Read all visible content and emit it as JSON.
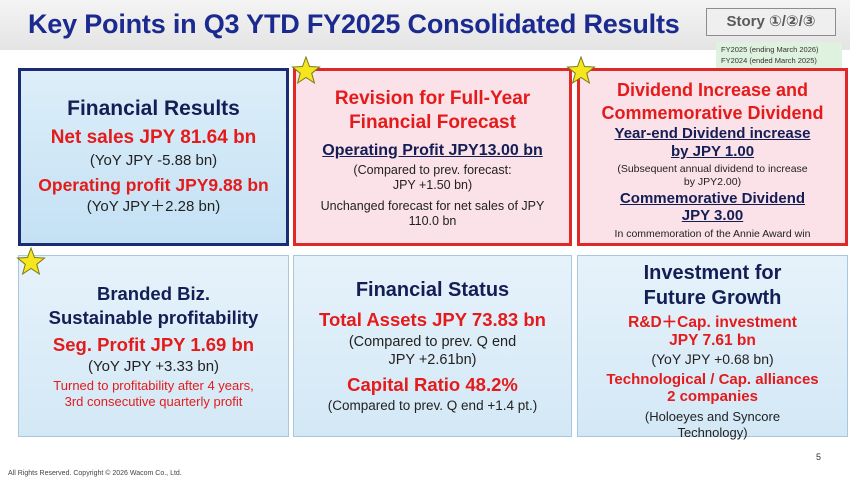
{
  "header": {
    "title": "Key Points in Q3 YTD FY2025 Consolidated Results",
    "story_badge": "Story ①/②/③",
    "fy_notes": [
      "FY2025 (ending March 2026)",
      "FY2024 (ended March 2025)"
    ]
  },
  "financial_results": {
    "heading": "Financial Results",
    "net_sales": "Net sales JPY 81.64 bn",
    "net_sales_yoy": "(YoY JPY -5.88 bn)",
    "op_profit": "Operating profit JPY9.88 bn",
    "op_profit_yoy": "(YoY JPY＋2.28 bn)"
  },
  "revision": {
    "heading_1": "Revision for Full-Year",
    "heading_2": "Financial Forecast",
    "op_profit": "Operating Profit JPY13.00 bn",
    "compare_1": "(Compared to prev. forecast:",
    "compare_2": "JPY +1.50 bn)",
    "unchanged_1": "Unchanged forecast for net sales of JPY",
    "unchanged_2": "110.0 bn"
  },
  "dividend": {
    "heading_1": "Dividend Increase and",
    "heading_2": "Commemorative Dividend",
    "yearend_1": "Year-end Dividend increase",
    "yearend_2": "by JPY 1.00",
    "sub_1": "(Subsequent annual dividend to increase",
    "sub_2": "by JPY2.00)",
    "commem_1": "Commemorative Dividend",
    "commem_2": "JPY 3.00",
    "annie": "In commemoration of the Annie Award win"
  },
  "branded": {
    "heading_1": "Branded Biz.",
    "heading_2": "Sustainable profitability",
    "seg_profit": "Seg. Profit JPY 1.69 bn",
    "seg_yoy": "(YoY JPY +3.33 bn)",
    "note_1": "Turned to profitability after 4 years,",
    "note_2": "3rd consecutive quarterly profit"
  },
  "status": {
    "heading": "Financial Status",
    "total_assets": "Total Assets JPY 73.83 bn",
    "ta_compare_1": "(Compared to prev. Q end",
    "ta_compare_2": "JPY +2.61bn)",
    "capital_ratio": "Capital Ratio 48.2%",
    "cr_compare": "(Compared to prev. Q end +1.4 pt.)"
  },
  "invest": {
    "heading_1": "Investment for",
    "heading_2": "Future Growth",
    "rd_1": "R&D＋Cap. investment",
    "rd_2": "JPY 7.61 bn",
    "rd_yoy": "(YoY JPY +0.68 bn)",
    "alliances_1": "Technological / Cap. alliances",
    "alliances_2": "2 companies",
    "partners_1": "(Holoeyes and Syncore",
    "partners_2": "Technology)"
  },
  "footer": {
    "copyright": "All Rights Reserved. Copyright © 2026 Wacom Co., Ltd.",
    "page": "5"
  },
  "colors": {
    "title_navy": "#1b2a8f",
    "accent_red": "#e41b1b",
    "panel_blue": "#c4e1f4",
    "panel_pink": "#fbe1e8",
    "star_yellow": "#f5e61e"
  },
  "icons": [
    "star-icon"
  ]
}
